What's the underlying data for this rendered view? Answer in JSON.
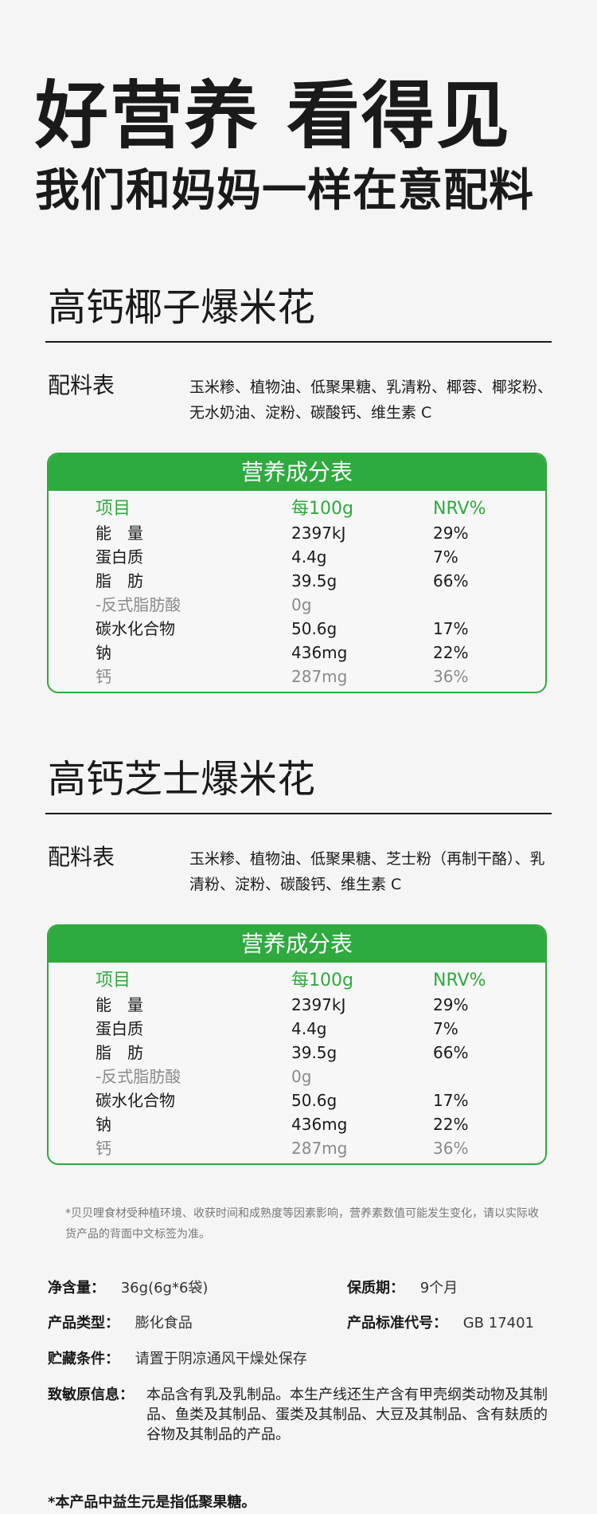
{
  "hero": {
    "title": "好营养 看得见",
    "subtitle": "我们和妈妈一样在意配料"
  },
  "products": [
    {
      "title": "高钙椰子爆米花",
      "ingredients_label": "配料表",
      "ingredients": "玉米糁、植物油、低聚果糖、乳清粉、椰蓉、椰浆粉、无水奶油、淀粉、碳酸钙、维生素 C",
      "table": {
        "heading": "营养成分表",
        "columns": [
          "项目",
          "每100g",
          "NRV%"
        ],
        "rows": [
          {
            "item": "能　量",
            "per100g": "2397kJ",
            "nrv": "29%"
          },
          {
            "item": "蛋白质",
            "per100g": "4.4g",
            "nrv": "7%"
          },
          {
            "item": "脂　肪",
            "per100g": "39.5g",
            "nrv": "66%"
          },
          {
            "item": "-反式脂肪酸",
            "per100g": "0g",
            "nrv": ""
          },
          {
            "item": "碳水化合物",
            "per100g": "50.6g",
            "nrv": "17%"
          },
          {
            "item": "钠",
            "per100g": "436mg",
            "nrv": "22%"
          },
          {
            "item": "钙",
            "per100g": "287mg",
            "nrv": "36%"
          }
        ]
      }
    },
    {
      "title": "高钙芝士爆米花",
      "ingredients_label": "配料表",
      "ingredients": "玉米糁、植物油、低聚果糖、芝士粉（再制干酪）、乳清粉、淀粉、碳酸钙、维生素 C",
      "table": {
        "heading": "营养成分表",
        "columns": [
          "项目",
          "每100g",
          "NRV%"
        ],
        "rows": [
          {
            "item": "能　量",
            "per100g": "2397kJ",
            "nrv": "29%"
          },
          {
            "item": "蛋白质",
            "per100g": "4.4g",
            "nrv": "7%"
          },
          {
            "item": "脂　肪",
            "per100g": "39.5g",
            "nrv": "66%"
          },
          {
            "item": "-反式脂肪酸",
            "per100g": "0g",
            "nrv": ""
          },
          {
            "item": "碳水化合物",
            "per100g": "50.6g",
            "nrv": "17%"
          },
          {
            "item": "钠",
            "per100g": "436mg",
            "nrv": "22%"
          },
          {
            "item": "钙",
            "per100g": "287mg",
            "nrv": "36%"
          }
        ]
      }
    }
  ],
  "note": "*贝贝哩食材受种植环境、收获时间和成熟度等因素影响，营养素数值可能发生变化，请以实际收货产品的背面中文标签为准。",
  "info": {
    "net_label": "净含量：",
    "net_value": "36g(6g*6袋)",
    "shelf_label": "保质期：",
    "shelf_value": "9个月",
    "type_label": "产品类型：",
    "type_value": "膨化食品",
    "standard_label": "产品标准代号：",
    "standard_value": "GB 17401",
    "storage_label": "贮藏条件：",
    "storage_value": "请置于阴凉通风干燥处保存",
    "allergen_label": "致敏原信息：",
    "allergen_value": "本品含有乳及乳制品。本生产线还生产含有甲壳纲类动物及其制品、鱼类及其制品、蛋类及其制品、大豆及其制品、含有麸质的谷物及其制品的产品。"
  },
  "footer": "*本产品中益生元是指低聚果糖。"
}
